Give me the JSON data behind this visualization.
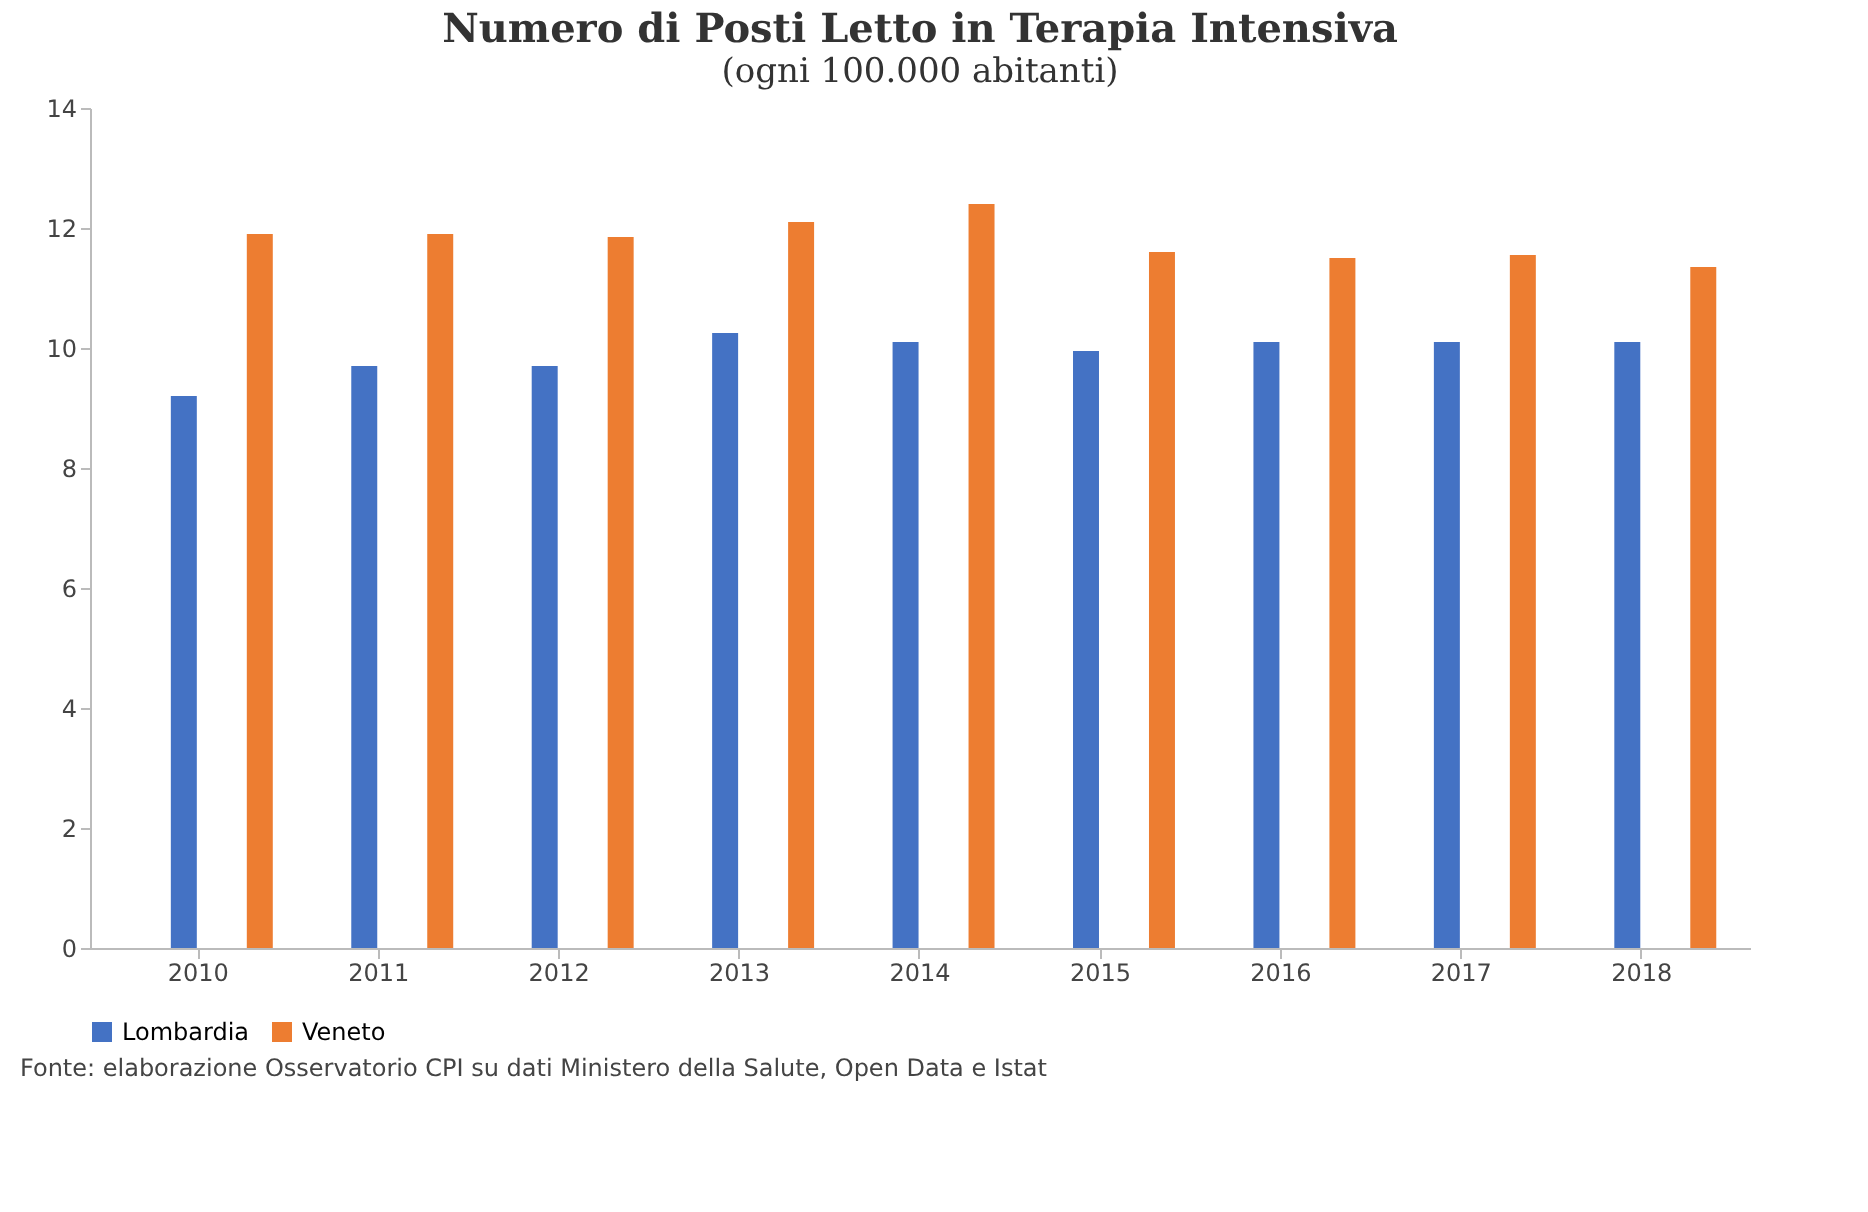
{
  "chart_data": {
    "type": "bar",
    "title": "Numero di Posti Letto in Terapia Intensiva",
    "subtitle": "(ogni 100.000 abitanti)",
    "categories": [
      "2010",
      "2011",
      "2012",
      "2013",
      "2014",
      "2015",
      "2016",
      "2017",
      "2018"
    ],
    "series": [
      {
        "name": "Lombardia",
        "color": "#4472c4",
        "values": [
          9.2,
          9.7,
          9.7,
          10.25,
          10.1,
          9.95,
          10.1,
          10.1,
          10.1
        ]
      },
      {
        "name": "Veneto",
        "color": "#ed7d31",
        "values": [
          11.9,
          11.9,
          11.85,
          12.1,
          12.4,
          11.6,
          11.5,
          11.55,
          11.35
        ]
      }
    ],
    "ylim": [
      0,
      14
    ],
    "yticks": [
      0,
      2,
      4,
      6,
      8,
      10,
      12,
      14
    ],
    "grid": false,
    "legend": "bottom",
    "annotations": [
      "Fonte: elaborazione Osservatorio CPI su dati Ministero della Salute, Open Data e Istat"
    ]
  }
}
